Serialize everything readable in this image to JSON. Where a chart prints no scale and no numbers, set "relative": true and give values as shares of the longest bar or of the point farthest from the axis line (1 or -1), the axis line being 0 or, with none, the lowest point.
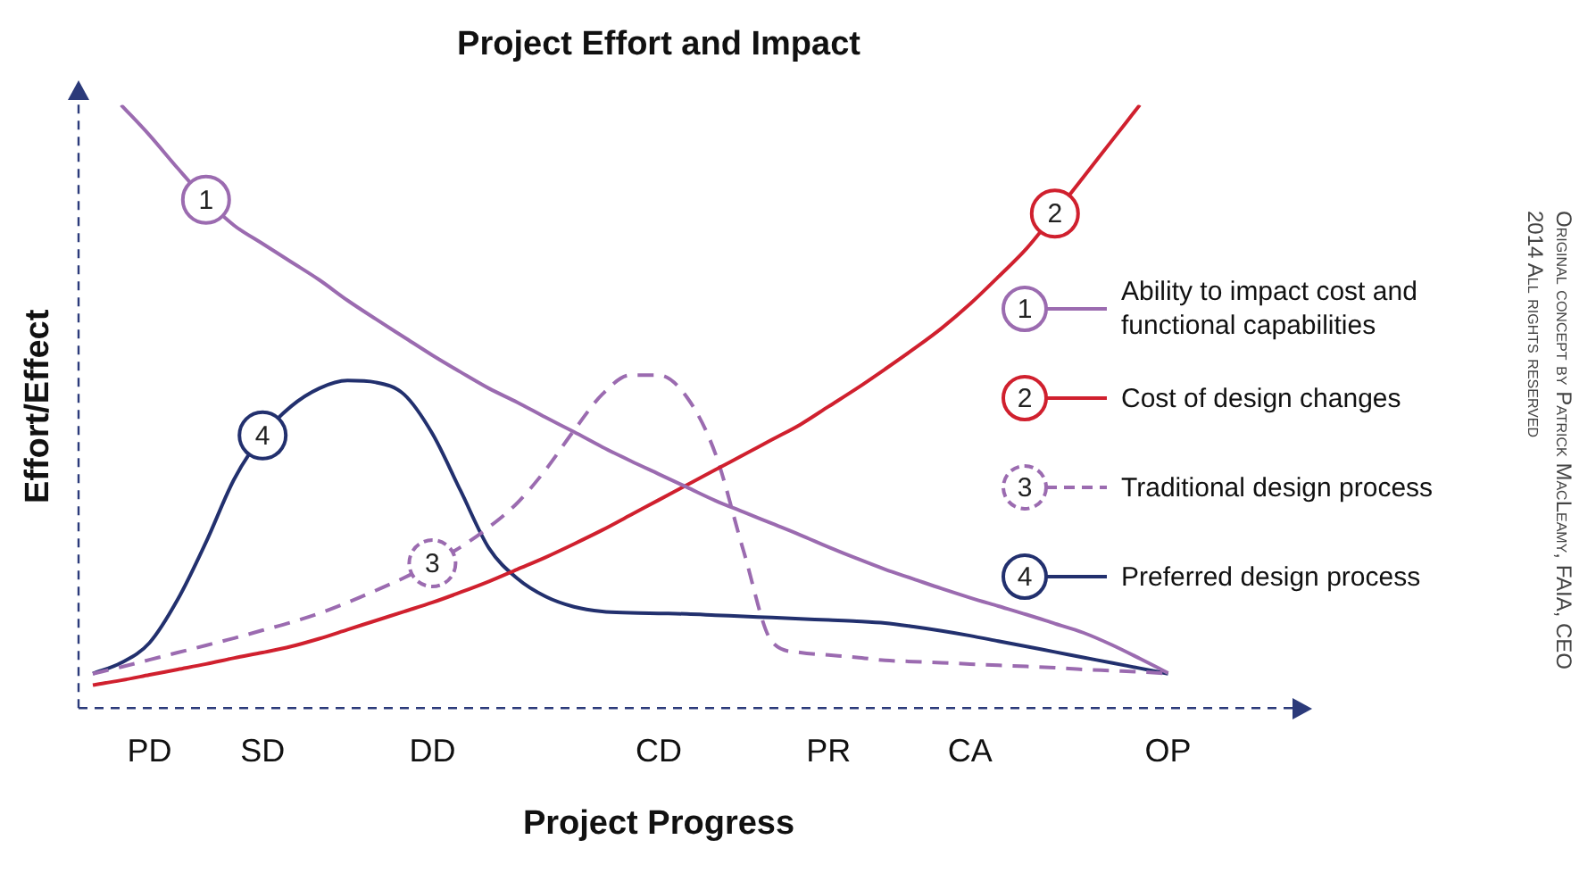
{
  "chart_data": {
    "type": "line",
    "title": "Project Effort and Impact",
    "xlabel": "Project Progress",
    "ylabel": "Effort/Effect",
    "relative": true,
    "legend": "right",
    "categories": [
      null,
      null,
      "PD",
      null,
      null,
      null,
      "SD",
      null,
      null,
      null,
      null,
      null,
      "DD",
      null,
      null,
      null,
      null,
      null,
      null,
      null,
      "CD",
      null,
      null,
      null,
      null,
      null,
      "PR",
      null,
      null,
      null,
      null,
      "CA",
      null,
      null,
      null,
      null,
      null,
      null,
      "OP",
      null,
      null
    ],
    "series": [
      {
        "name": "Ability to impact cost and functional capabilities",
        "color": "#9b6bb0",
        "values": [
          null,
          1.0,
          0.95,
          0.895,
          0.843,
          0.8,
          0.77,
          0.74,
          0.71,
          0.676,
          0.645,
          0.615,
          0.585,
          0.557,
          0.53,
          0.507,
          0.482,
          0.458,
          0.433,
          0.41,
          0.388,
          0.366,
          0.344,
          0.325,
          0.306,
          0.287,
          0.267,
          0.248,
          0.23,
          0.214,
          0.198,
          0.183,
          0.169,
          0.155,
          0.14,
          0.125,
          0.105,
          0.082,
          0.058,
          null,
          null
        ]
      },
      {
        "name": "Cost of design changes",
        "color": "#d0202e",
        "values": [
          0.038,
          0.046,
          0.055,
          0.064,
          0.073,
          0.083,
          0.092,
          0.102,
          0.115,
          0.13,
          0.145,
          0.16,
          0.175,
          0.192,
          0.21,
          0.23,
          0.25,
          0.272,
          0.295,
          0.32,
          0.345,
          0.37,
          0.395,
          0.42,
          0.445,
          0.47,
          0.5,
          0.53,
          0.562,
          0.595,
          0.63,
          0.67,
          0.715,
          0.762,
          0.82,
          0.88,
          0.94,
          1.0,
          null,
          null,
          null
        ]
      },
      {
        "name": "Traditional design process",
        "color": "#9b6bb0",
        "line_style": "dashed",
        "values": [
          0.057,
          0.068,
          0.08,
          0.092,
          0.104,
          0.116,
          0.129,
          0.142,
          0.157,
          0.175,
          0.195,
          0.216,
          0.24,
          0.267,
          0.3,
          0.34,
          0.395,
          0.46,
          0.52,
          0.552,
          0.552,
          0.515,
          0.422,
          0.26,
          0.11,
          0.092,
          0.088,
          0.084,
          0.079,
          0.077,
          0.075,
          0.073,
          0.071,
          0.069,
          0.067,
          0.064,
          0.062,
          0.06,
          0.057,
          null,
          null
        ]
      },
      {
        "name": "Preferred design process",
        "color": "#22306e",
        "values": [
          0.057,
          0.075,
          0.108,
          0.18,
          0.275,
          0.38,
          0.452,
          0.5,
          0.53,
          0.543,
          0.54,
          0.52,
          0.455,
          0.36,
          0.265,
          0.215,
          0.185,
          0.168,
          0.16,
          0.158,
          0.157,
          0.156,
          0.154,
          0.152,
          0.15,
          0.148,
          0.146,
          0.144,
          0.141,
          0.135,
          0.128,
          0.12,
          0.111,
          0.102,
          0.093,
          0.084,
          0.075,
          0.066,
          0.057,
          null,
          null
        ]
      }
    ],
    "annotations": [
      "1",
      "2",
      "3",
      "4",
      "Original concept by Patrick MacLeamy, FAIA, CEO",
      "2014 All rights reserved"
    ]
  }
}
